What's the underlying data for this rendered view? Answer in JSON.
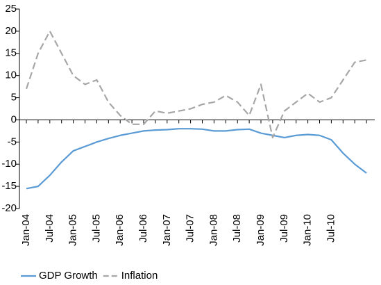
{
  "chart_data": {
    "type": "line",
    "categories": [
      "Jan-04",
      null,
      "Jul-04",
      null,
      "Jan-05",
      null,
      "Jul-05",
      null,
      "Jan-06",
      null,
      "Jul-06",
      null,
      "Jan-07",
      null,
      "Jul-07",
      null,
      "Jan-08",
      null,
      "Jul-08",
      null,
      "Jan-09",
      null,
      "Jul-09",
      null,
      "Jan-10",
      null,
      "Jul-10",
      null,
      null,
      null
    ],
    "series": [
      {
        "name": "GDP Growth",
        "color": "#5b9bd5",
        "dash": false,
        "values": [
          -15.5,
          -15,
          -12.5,
          -9.5,
          -7,
          -6,
          -5,
          -4.2,
          -3.5,
          -3,
          -2.5,
          -2.3,
          -2.2,
          -2,
          -2,
          -2.1,
          -2.5,
          -2.5,
          -2.2,
          -2.1,
          -3,
          -3.5,
          -4,
          -3.5,
          -3.3,
          -3.5,
          -4.5,
          -7.5,
          -10,
          -12
        ]
      },
      {
        "name": "Inflation",
        "color": "#a6a6a6",
        "dash": true,
        "values": [
          7,
          15,
          20,
          15,
          10,
          8,
          9,
          4,
          1,
          -1,
          -1,
          2,
          1.5,
          2,
          2.5,
          3.5,
          4,
          5.5,
          4,
          1,
          8,
          -4,
          2,
          4,
          6,
          4,
          5,
          9,
          13,
          13.5
        ]
      }
    ],
    "ylim": [
      -20,
      25
    ],
    "yticks": [
      -20,
      -15,
      -10,
      -5,
      0,
      5,
      10,
      15,
      20,
      25
    ],
    "legend": "bottom"
  }
}
